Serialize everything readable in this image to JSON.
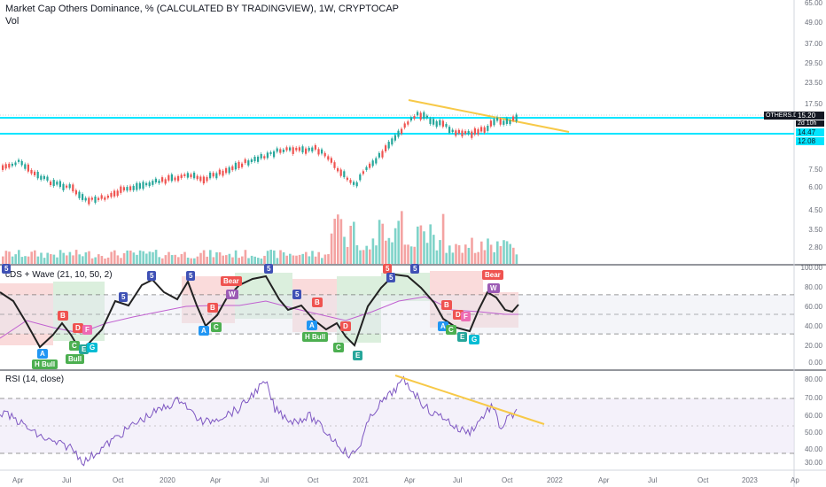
{
  "header": {
    "title": "Market Cap Others Dominance, % (CALCULATED BY TRADINGVIEW), 1W, CRYPTOCAP",
    "vol_label": "Vol"
  },
  "price_axis": [
    "65.00",
    "49.00",
    "37.00",
    "29.50",
    "23.50",
    "17.50",
    "12.08",
    "7.50",
    "6.00",
    "4.50",
    "3.50",
    "2.80"
  ],
  "price_badges": {
    "ticker": "OTHERS.D",
    "price": "15.20",
    "countdown": "2d 10h",
    "level_a": "14.47",
    "level_b": "12.08"
  },
  "wave_panel": {
    "title": "cDS + Wave (21, 10, 50, 2)",
    "axis": [
      "100.00",
      "80.00",
      "60.00",
      "40.00",
      "20.00",
      "0.00"
    ],
    "badges": {
      "h_bull_1": "H Bull",
      "bull_1": "Bull",
      "bear_1": "Bear",
      "h_bull_2": "H Bull",
      "bear_2": "Bear",
      "a": "A",
      "b": "B",
      "c": "C",
      "d": "D",
      "e": "E",
      "f": "F",
      "g": "G",
      "five": "5",
      "w": "W"
    }
  },
  "rsi_panel": {
    "title": "RSI (14, close)",
    "axis": [
      "80.00",
      "70.00",
      "60.00",
      "50.00",
      "40.00",
      "30.00"
    ]
  },
  "time_axis": [
    "Apr",
    "Jul",
    "Oct",
    "2020",
    "Apr",
    "Jul",
    "Oct",
    "2021",
    "Apr",
    "Jul",
    "Oct",
    "2022",
    "Apr",
    "Jul",
    "Oct",
    "2023",
    "Ap"
  ],
  "colors": {
    "up": "#26a69a",
    "down": "#ef5350",
    "cyan": "#00e5ff",
    "trend": "#f7c948",
    "rsi": "#7e57c2"
  }
}
